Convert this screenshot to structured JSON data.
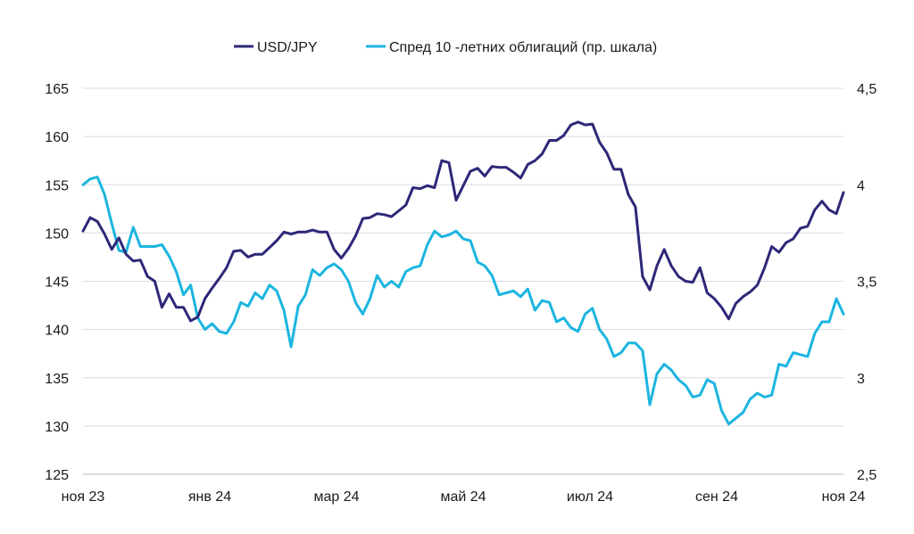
{
  "chart_data": {
    "type": "line",
    "title": "",
    "x_range": [
      "ноя 23",
      "ноя 24"
    ],
    "x_sampling": "evenly spaced points from start to end of period",
    "x_tick_labels": [
      "ноя 23",
      "янв 24",
      "мар 24",
      "май 24",
      "июл 24",
      "сен 24",
      "ноя 24"
    ],
    "y_left": {
      "min": 125,
      "max": 165,
      "ticks": [
        "125",
        "130",
        "135",
        "140",
        "145",
        "150",
        "155",
        "160",
        "165"
      ]
    },
    "y_right": {
      "min": 2.5,
      "max": 4.5,
      "ticks": [
        "2,5",
        "3",
        "3,5",
        "4",
        "4,5"
      ]
    },
    "grid": true,
    "legend_position": "top-center",
    "series": [
      {
        "name": "USD/JPY",
        "axis": "left",
        "color": "#2d2878",
        "values": [
          150.2,
          151.6,
          151.2,
          149.9,
          148.3,
          149.5,
          147.8,
          147.1,
          147.2,
          145.5,
          145.0,
          142.3,
          143.7,
          142.3,
          142.3,
          140.9,
          141.3,
          143.2,
          144.3,
          145.3,
          146.4,
          148.1,
          148.2,
          147.5,
          147.8,
          147.8,
          148.5,
          149.2,
          150.1,
          149.9,
          150.1,
          150.1,
          150.3,
          150.1,
          150.1,
          148.3,
          147.4,
          148.4,
          149.7,
          151.5,
          151.6,
          152.0,
          151.9,
          151.7,
          152.3,
          152.9,
          154.7,
          154.6,
          154.9,
          154.7,
          157.5,
          157.3,
          153.4,
          154.9,
          156.4,
          156.7,
          155.9,
          156.9,
          156.8,
          156.8,
          156.3,
          155.7,
          157.1,
          157.5,
          158.2,
          159.6,
          159.6,
          160.1,
          161.2,
          161.5,
          161.2,
          161.3,
          159.4,
          158.3,
          156.6,
          156.6,
          154.0,
          152.7,
          145.5,
          144.1,
          146.6,
          148.3,
          146.6,
          145.5,
          145.0,
          144.9,
          146.4,
          143.8,
          143.2,
          142.3,
          141.1,
          142.7,
          143.4,
          143.9,
          144.6,
          146.4,
          148.6,
          148.0,
          149.0,
          149.4,
          150.5,
          150.7,
          152.4,
          153.3,
          152.4,
          152.0,
          154.2
        ]
      },
      {
        "name": "Спред 10 -летних облигаций (пр. шкала)",
        "axis": "right",
        "color": "#1cb5e0",
        "values": [
          4.0,
          4.03,
          4.04,
          3.95,
          3.8,
          3.66,
          3.65,
          3.78,
          3.68,
          3.68,
          3.68,
          3.69,
          3.63,
          3.55,
          3.43,
          3.48,
          3.31,
          3.25,
          3.28,
          3.24,
          3.23,
          3.29,
          3.39,
          3.37,
          3.44,
          3.41,
          3.48,
          3.45,
          3.35,
          3.16,
          3.37,
          3.43,
          3.56,
          3.53,
          3.57,
          3.59,
          3.56,
          3.5,
          3.39,
          3.33,
          3.41,
          3.53,
          3.47,
          3.5,
          3.47,
          3.55,
          3.57,
          3.58,
          3.69,
          3.76,
          3.73,
          3.74,
          3.76,
          3.72,
          3.71,
          3.6,
          3.58,
          3.53,
          3.43,
          3.44,
          3.45,
          3.42,
          3.46,
          3.35,
          3.4,
          3.39,
          3.29,
          3.31,
          3.26,
          3.24,
          3.33,
          3.36,
          3.25,
          3.2,
          3.11,
          3.13,
          3.18,
          3.18,
          3.14,
          2.86,
          3.02,
          3.07,
          3.04,
          2.99,
          2.96,
          2.9,
          2.91,
          2.99,
          2.97,
          2.83,
          2.76,
          2.79,
          2.82,
          2.89,
          2.92,
          2.9,
          2.91,
          3.07,
          3.06,
          3.13,
          3.12,
          3.11,
          3.23,
          3.29,
          3.29,
          3.41,
          3.33
        ]
      }
    ]
  }
}
